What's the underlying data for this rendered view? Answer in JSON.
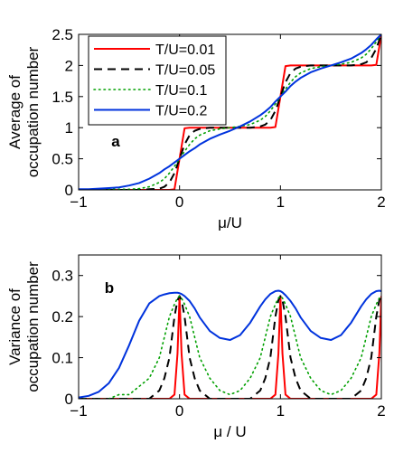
{
  "chart_data": [
    {
      "type": "line",
      "panel_label": "a",
      "xlabel": "μ/U",
      "ylabel": [
        "Average of",
        "occupation number"
      ],
      "xlim": [
        -1,
        2
      ],
      "ylim": [
        0,
        2.5
      ],
      "xticks": [
        "−1",
        "0",
        "1",
        "2"
      ],
      "yticks": [
        "0",
        "0.5",
        "1",
        "1.5",
        "2",
        "2.5"
      ],
      "xtick_values": [
        -1,
        0,
        1,
        2
      ],
      "ytick_values": [
        0,
        0.5,
        1,
        1.5,
        2,
        2.5
      ],
      "grid": false,
      "legend_position": "top-left",
      "x": [
        -1,
        -0.9,
        -0.8,
        -0.7,
        -0.6,
        -0.5,
        -0.4,
        -0.3,
        -0.2,
        -0.15,
        -0.1,
        -0.05,
        0,
        0.05,
        0.1,
        0.15,
        0.2,
        0.3,
        0.4,
        0.5,
        0.6,
        0.7,
        0.8,
        0.85,
        0.9,
        0.95,
        1,
        1.05,
        1.1,
        1.15,
        1.2,
        1.3,
        1.4,
        1.5,
        1.6,
        1.7,
        1.8,
        1.85,
        1.9,
        1.95,
        2
      ],
      "series": [
        {
          "name": "T/U=0.01",
          "color": "#ff0000",
          "dash": "solid",
          "values": [
            0,
            0,
            0,
            0,
            0,
            0,
            0,
            0,
            0,
            0,
            0,
            0.01,
            0.5,
            0.99,
            1,
            1,
            1,
            1,
            1,
            1,
            1,
            1,
            1,
            1,
            1,
            1.01,
            1.5,
            1.99,
            2,
            2,
            2,
            2,
            2,
            2,
            2,
            2,
            2,
            2,
            2,
            2.01,
            2.5
          ]
        },
        {
          "name": "T/U=0.05",
          "color": "#000000",
          "dash": "dashed",
          "values": [
            0,
            0,
            0,
            0,
            0,
            0,
            0,
            0.01,
            0.02,
            0.05,
            0.12,
            0.27,
            0.5,
            0.73,
            0.88,
            0.95,
            0.98,
            1,
            1,
            1,
            1,
            1,
            1.02,
            1.05,
            1.12,
            1.27,
            1.5,
            1.73,
            1.88,
            1.95,
            1.98,
            2,
            2,
            2,
            2,
            2,
            2.02,
            2.05,
            2.12,
            2.27,
            2.5
          ]
        },
        {
          "name": "T/U=0.1",
          "color": "#00a000",
          "dash": "dotted",
          "values": [
            0,
            0,
            0,
            0.01,
            0.01,
            0.01,
            0.02,
            0.05,
            0.12,
            0.18,
            0.27,
            0.38,
            0.5,
            0.62,
            0.73,
            0.82,
            0.88,
            0.95,
            0.98,
            1,
            1.02,
            1.05,
            1.12,
            1.18,
            1.27,
            1.38,
            1.5,
            1.62,
            1.73,
            1.82,
            1.88,
            1.95,
            1.98,
            2,
            2.02,
            2.05,
            2.12,
            2.18,
            2.27,
            2.38,
            2.5
          ]
        },
        {
          "name": "T/U=0.2",
          "color": "#0033dd",
          "dash": "solid",
          "values": [
            0.01,
            0.01,
            0.02,
            0.03,
            0.04,
            0.07,
            0.11,
            0.18,
            0.27,
            0.33,
            0.38,
            0.44,
            0.5,
            0.56,
            0.62,
            0.67,
            0.73,
            0.82,
            0.89,
            0.95,
            1.02,
            1.1,
            1.2,
            1.26,
            1.33,
            1.42,
            1.5,
            1.58,
            1.67,
            1.74,
            1.8,
            1.89,
            1.95,
            2,
            2.05,
            2.11,
            2.2,
            2.26,
            2.33,
            2.42,
            2.5
          ]
        }
      ]
    },
    {
      "type": "line",
      "panel_label": "b",
      "xlabel": "μ / U",
      "ylabel": [
        "Variance of",
        "occupation number"
      ],
      "xlim": [
        -1,
        2
      ],
      "ylim": [
        0,
        0.35
      ],
      "xticks": [
        "−1",
        "0",
        "1",
        "2"
      ],
      "yticks": [
        "0",
        "0.1",
        "0.2",
        "0.3"
      ],
      "xtick_values": [
        -1,
        0,
        1,
        2
      ],
      "ytick_values": [
        0,
        0.1,
        0.2,
        0.3
      ],
      "grid": false,
      "x": [
        -1,
        -0.9,
        -0.8,
        -0.7,
        -0.6,
        -0.5,
        -0.4,
        -0.3,
        -0.2,
        -0.15,
        -0.1,
        -0.05,
        -0.02,
        0,
        0.02,
        0.05,
        0.1,
        0.15,
        0.2,
        0.3,
        0.4,
        0.5,
        0.6,
        0.7,
        0.8,
        0.85,
        0.9,
        0.95,
        0.98,
        1,
        1.02,
        1.05,
        1.1,
        1.15,
        1.2,
        1.3,
        1.4,
        1.5,
        1.6,
        1.7,
        1.8,
        1.85,
        1.9,
        1.95,
        1.98,
        2
      ],
      "series": [
        {
          "name": "T/U=0.01",
          "color": "#ff0000",
          "dash": "solid",
          "values": [
            0,
            0,
            0,
            0,
            0,
            0,
            0,
            0,
            0,
            0,
            0,
            0.01,
            0.11,
            0.25,
            0.11,
            0.01,
            0,
            0,
            0,
            0,
            0,
            0,
            0,
            0,
            0,
            0,
            0,
            0.01,
            0.11,
            0.25,
            0.11,
            0.01,
            0,
            0,
            0,
            0,
            0,
            0,
            0,
            0,
            0,
            0,
            0,
            0.01,
            0.11,
            0.25
          ]
        },
        {
          "name": "T/U=0.05",
          "color": "#000000",
          "dash": "dashed",
          "values": [
            0,
            0,
            0,
            0,
            0,
            0,
            0,
            0,
            0.02,
            0.05,
            0.1,
            0.2,
            0.24,
            0.25,
            0.24,
            0.2,
            0.1,
            0.05,
            0.02,
            0,
            0,
            0,
            0,
            0,
            0.02,
            0.05,
            0.1,
            0.2,
            0.24,
            0.25,
            0.24,
            0.2,
            0.1,
            0.05,
            0.02,
            0,
            0,
            0,
            0,
            0,
            0.02,
            0.05,
            0.1,
            0.2,
            0.24,
            0.25
          ]
        },
        {
          "name": "T/U=0.1",
          "color": "#00a000",
          "dash": "dotted",
          "values": [
            0,
            0,
            0,
            0,
            0.01,
            0.01,
            0.03,
            0.05,
            0.1,
            0.15,
            0.2,
            0.23,
            0.245,
            0.25,
            0.245,
            0.23,
            0.2,
            0.15,
            0.1,
            0.05,
            0.02,
            0.01,
            0.02,
            0.05,
            0.1,
            0.15,
            0.2,
            0.23,
            0.245,
            0.25,
            0.245,
            0.23,
            0.2,
            0.15,
            0.1,
            0.05,
            0.02,
            0.01,
            0.02,
            0.05,
            0.1,
            0.15,
            0.2,
            0.23,
            0.245,
            0.25
          ]
        },
        {
          "name": "T/U=0.2",
          "color": "#0033dd",
          "dash": "solid",
          "values": [
            0.003,
            0.007,
            0.017,
            0.038,
            0.075,
            0.13,
            0.19,
            0.232,
            0.25,
            0.254,
            0.257,
            0.258,
            0.258,
            0.257,
            0.255,
            0.25,
            0.238,
            0.22,
            0.198,
            0.165,
            0.148,
            0.143,
            0.155,
            0.185,
            0.225,
            0.242,
            0.255,
            0.262,
            0.263,
            0.262,
            0.259,
            0.252,
            0.238,
            0.22,
            0.198,
            0.165,
            0.148,
            0.143,
            0.155,
            0.185,
            0.225,
            0.242,
            0.255,
            0.262,
            0.263,
            0.262
          ]
        }
      ]
    }
  ]
}
